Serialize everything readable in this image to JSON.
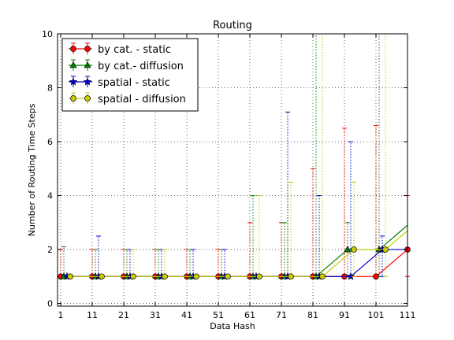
{
  "chart_data": {
    "type": "line",
    "title": "Routing",
    "xlabel": "Data Hash",
    "ylabel": "Number of Routing Time Steps",
    "xlim": [
      0,
      111
    ],
    "ylim": [
      -0.1,
      10
    ],
    "xticks": [
      1,
      11,
      21,
      31,
      41,
      51,
      61,
      71,
      81,
      91,
      101,
      111
    ],
    "yticks": [
      0,
      2,
      4,
      6,
      8,
      10
    ],
    "grid": true,
    "legend_position": "top-left",
    "series": [
      {
        "name": "by cat. - static",
        "color": "#ff0000",
        "marker": "circle",
        "x": [
          1,
          11,
          21,
          31,
          41,
          51,
          61,
          71,
          81,
          91,
          101,
          111
        ],
        "y": [
          1,
          1,
          1,
          1,
          1,
          1,
          1,
          1,
          1,
          1,
          1,
          2
        ],
        "err_up": [
          1,
          1,
          1,
          1,
          1,
          1,
          2,
          2,
          4,
          5.5,
          5.6,
          2
        ],
        "err_down": [
          0,
          0,
          0,
          0,
          0,
          0,
          0,
          0,
          0,
          0,
          0,
          1
        ]
      },
      {
        "name": "by cat.- diffusion",
        "color": "#008000",
        "marker": "triangle",
        "x": [
          2,
          12,
          22,
          32,
          42,
          52,
          62,
          72,
          82,
          92,
          102,
          112
        ],
        "y": [
          1,
          1,
          1,
          1,
          1,
          1,
          1,
          1,
          1,
          2,
          2,
          3
        ],
        "err_up": [
          1.1,
          1,
          1,
          1,
          1,
          1,
          3,
          2,
          9,
          1,
          9,
          8
        ],
        "err_down": [
          0,
          0,
          0,
          0,
          0,
          0,
          0,
          0,
          0,
          1,
          1,
          2
        ]
      },
      {
        "name": "spatial - static",
        "color": "#0000cc",
        "marker": "star",
        "x": [
          3,
          13,
          23,
          33,
          43,
          53,
          63,
          73,
          83,
          93,
          103,
          113
        ],
        "y": [
          1,
          1,
          1,
          1,
          1,
          1,
          1,
          1,
          1,
          1,
          2,
          2
        ],
        "err_up": [
          0,
          1.5,
          1,
          1,
          1,
          1,
          0,
          6.1,
          3,
          5,
          0.5,
          0
        ],
        "err_down": [
          0,
          0,
          0,
          0,
          0,
          0,
          0,
          0,
          0,
          0,
          1,
          1
        ]
      },
      {
        "name": "spatial - diffusion",
        "color": "#cccc00",
        "marker": "circle",
        "x": [
          4,
          14,
          24,
          34,
          44,
          54,
          64,
          74,
          84,
          94,
          104,
          114
        ],
        "y": [
          1,
          1,
          1,
          1,
          1,
          1,
          1,
          1,
          1,
          2,
          2,
          3
        ],
        "err_up": [
          0,
          0,
          1,
          1,
          0,
          0,
          3,
          3.5,
          9,
          2.5,
          8,
          8
        ],
        "err_down": [
          0,
          0,
          0,
          0,
          0,
          0,
          0,
          0,
          0,
          1,
          1,
          2
        ]
      }
    ]
  }
}
